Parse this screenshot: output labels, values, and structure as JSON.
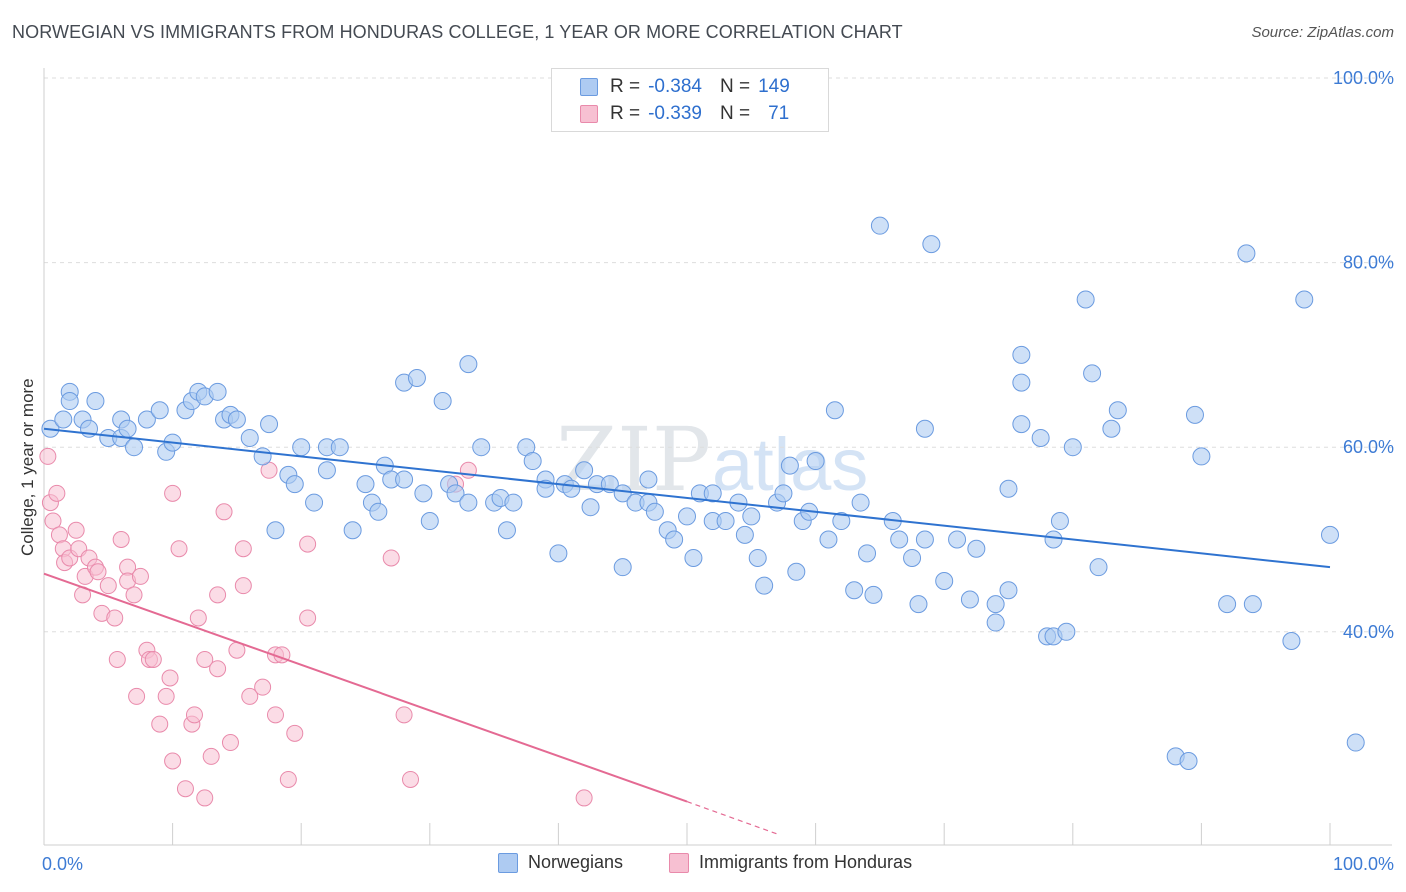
{
  "title": "NORWEGIAN VS IMMIGRANTS FROM HONDURAS COLLEGE, 1 YEAR OR MORE CORRELATION CHART",
  "source": "Source: ZipAtlas.com",
  "watermark": {
    "zip": "ZIP",
    "atlas": "atlas"
  },
  "legend": {
    "r_label": "R =",
    "n_label": "N =",
    "series": [
      {
        "r": "-0.384",
        "n": "149"
      },
      {
        "r": "-0.339",
        "n": "71"
      }
    ]
  },
  "chart_data": {
    "type": "scatter",
    "title": "NORWEGIAN VS IMMIGRANTS FROM HONDURAS COLLEGE, 1 YEAR OR MORE CORRELATION CHART",
    "xlabel": "",
    "ylabel": "College, 1 year or more",
    "xlim": [
      0,
      100
    ],
    "ylim": [
      16.9,
      100
    ],
    "x_tick_labels": [
      "0.0%",
      "100.0%"
    ],
    "y_ticks": [
      40,
      60,
      80,
      100
    ],
    "y_tick_labels": [
      "40.0%",
      "60.0%",
      "80.0%",
      "100.0%"
    ],
    "colors": {
      "norwegians_fill": "#aecbf2",
      "norwegians_stroke": "#6b9be0",
      "norwegians_line": "#2f73d0",
      "honduras_fill": "#f7c0d2",
      "honduras_stroke": "#e98aab",
      "honduras_line": "#e46a93",
      "axis_text": "#3d7bd4",
      "grid": "#dddddd"
    },
    "series": [
      {
        "name": "Norwegians",
        "trendline": {
          "x": [
            0,
            100
          ],
          "y": [
            62,
            47
          ]
        },
        "points": [
          [
            0.5,
            62
          ],
          [
            1.5,
            63
          ],
          [
            2,
            66
          ],
          [
            2,
            65
          ],
          [
            3,
            63
          ],
          [
            4,
            65
          ],
          [
            3.5,
            62
          ],
          [
            5,
            61
          ],
          [
            6,
            63
          ],
          [
            6,
            61
          ],
          [
            7,
            60
          ],
          [
            6.5,
            62
          ],
          [
            8,
            63
          ],
          [
            9,
            64
          ],
          [
            9.5,
            59.5
          ],
          [
            10,
            60.5
          ],
          [
            11,
            64
          ],
          [
            11.5,
            65
          ],
          [
            12,
            66
          ],
          [
            12.5,
            65.5
          ],
          [
            13.5,
            66
          ],
          [
            14,
            63
          ],
          [
            14.5,
            63.5
          ],
          [
            15,
            63
          ],
          [
            16,
            61
          ],
          [
            17,
            59
          ],
          [
            17.5,
            62.5
          ],
          [
            18,
            51
          ],
          [
            19,
            57
          ],
          [
            19.5,
            56
          ],
          [
            20,
            60
          ],
          [
            21,
            54
          ],
          [
            22,
            60
          ],
          [
            22,
            57.5
          ],
          [
            23,
            60
          ],
          [
            24,
            51
          ],
          [
            25,
            56
          ],
          [
            25.5,
            54
          ],
          [
            26,
            53
          ],
          [
            26.5,
            58
          ],
          [
            27,
            56.5
          ],
          [
            28,
            56.5
          ],
          [
            28,
            67
          ],
          [
            29,
            67.5
          ],
          [
            29.5,
            55
          ],
          [
            30,
            52
          ],
          [
            31,
            65
          ],
          [
            31.5,
            56
          ],
          [
            32,
            55
          ],
          [
            33,
            69
          ],
          [
            33,
            54
          ],
          [
            34,
            60
          ],
          [
            35,
            54
          ],
          [
            35.5,
            54.5
          ],
          [
            36,
            51
          ],
          [
            36.5,
            54
          ],
          [
            37.5,
            60
          ],
          [
            38,
            58.5
          ],
          [
            39,
            56.5
          ],
          [
            39,
            55.5
          ],
          [
            40,
            48.5
          ],
          [
            40.5,
            56
          ],
          [
            41,
            55.5
          ],
          [
            42,
            57.5
          ],
          [
            42.5,
            53.5
          ],
          [
            43,
            56
          ],
          [
            44,
            56
          ],
          [
            45,
            47
          ],
          [
            45,
            55
          ],
          [
            46,
            54
          ],
          [
            47,
            56.5
          ],
          [
            47,
            54
          ],
          [
            47.5,
            53
          ],
          [
            48.5,
            51
          ],
          [
            49,
            50
          ],
          [
            50,
            52.5
          ],
          [
            50.5,
            48
          ],
          [
            51,
            55
          ],
          [
            52,
            55
          ],
          [
            52,
            52
          ],
          [
            53,
            52
          ],
          [
            54,
            54
          ],
          [
            54.5,
            50.5
          ],
          [
            55,
            52.5
          ],
          [
            55.5,
            48
          ],
          [
            56,
            45
          ],
          [
            57,
            54
          ],
          [
            57.5,
            55
          ],
          [
            58,
            58
          ],
          [
            58.5,
            46.5
          ],
          [
            59,
            52
          ],
          [
            59.5,
            53
          ],
          [
            60,
            58.5
          ],
          [
            61,
            50
          ],
          [
            61.5,
            64
          ],
          [
            62,
            52
          ],
          [
            63,
            44.5
          ],
          [
            63.5,
            54
          ],
          [
            64,
            48.5
          ],
          [
            64.5,
            44
          ],
          [
            65,
            84
          ],
          [
            66,
            52
          ],
          [
            66.5,
            50
          ],
          [
            67.5,
            48
          ],
          [
            68,
            43
          ],
          [
            68.5,
            62
          ],
          [
            68.5,
            50
          ],
          [
            69,
            82
          ],
          [
            70,
            45.5
          ],
          [
            71,
            50
          ],
          [
            72,
            43.5
          ],
          [
            72.5,
            49
          ],
          [
            74,
            43
          ],
          [
            74,
            41
          ],
          [
            75,
            44.5
          ],
          [
            75,
            55.5
          ],
          [
            76,
            62.5
          ],
          [
            76,
            67
          ],
          [
            76,
            70
          ],
          [
            77.5,
            61
          ],
          [
            78,
            39.5
          ],
          [
            78.5,
            39.5
          ],
          [
            78.5,
            50
          ],
          [
            79,
            52
          ],
          [
            79.5,
            40
          ],
          [
            80,
            60
          ],
          [
            81,
            76
          ],
          [
            81.5,
            68
          ],
          [
            82,
            47
          ],
          [
            83,
            62
          ],
          [
            83.5,
            64
          ],
          [
            88,
            26.5
          ],
          [
            89,
            26
          ],
          [
            89.5,
            63.5
          ],
          [
            90,
            59
          ],
          [
            92,
            43
          ],
          [
            94,
            43
          ],
          [
            93.5,
            81
          ],
          [
            97,
            39
          ],
          [
            98,
            76
          ],
          [
            100,
            50.5
          ],
          [
            102,
            28
          ]
        ]
      },
      {
        "name": "Immigrants from Honduras",
        "trendline": {
          "x": [
            0,
            50
          ],
          "y": [
            46.3,
            21.6
          ],
          "dashed_to": {
            "x": 57,
            "y": 18.1
          }
        },
        "points": [
          [
            0.3,
            59
          ],
          [
            0.5,
            54
          ],
          [
            0.7,
            52
          ],
          [
            1,
            55
          ],
          [
            1.2,
            50.5
          ],
          [
            1.5,
            49
          ],
          [
            1.6,
            47.5
          ],
          [
            2,
            48
          ],
          [
            2.5,
            51
          ],
          [
            2.7,
            49
          ],
          [
            3,
            44
          ],
          [
            3.2,
            46
          ],
          [
            3.5,
            48
          ],
          [
            4,
            47
          ],
          [
            4.2,
            46.5
          ],
          [
            4.5,
            42
          ],
          [
            5,
            45
          ],
          [
            5.5,
            41.5
          ],
          [
            5.7,
            37
          ],
          [
            6,
            50
          ],
          [
            6.5,
            47
          ],
          [
            6.5,
            45.5
          ],
          [
            7,
            44
          ],
          [
            7.2,
            33
          ],
          [
            7.5,
            46
          ],
          [
            8,
            38
          ],
          [
            8.2,
            37
          ],
          [
            8.5,
            37
          ],
          [
            9,
            30
          ],
          [
            9.5,
            33
          ],
          [
            9.8,
            35
          ],
          [
            10,
            26
          ],
          [
            10,
            55
          ],
          [
            10.5,
            49
          ],
          [
            11,
            23
          ],
          [
            11.5,
            30
          ],
          [
            11.7,
            31
          ],
          [
            12,
            41.5
          ],
          [
            12.5,
            22
          ],
          [
            12.5,
            37
          ],
          [
            13,
            26.5
          ],
          [
            13.5,
            36
          ],
          [
            13.5,
            44
          ],
          [
            14,
            53
          ],
          [
            14.5,
            28
          ],
          [
            15,
            38
          ],
          [
            15.5,
            45
          ],
          [
            15.5,
            49
          ],
          [
            16,
            33
          ],
          [
            17,
            34
          ],
          [
            17.5,
            57.5
          ],
          [
            18,
            31
          ],
          [
            18,
            37.5
          ],
          [
            18.5,
            37.5
          ],
          [
            19,
            24
          ],
          [
            19.5,
            29
          ],
          [
            20.5,
            49.5
          ],
          [
            20.5,
            41.5
          ],
          [
            27,
            48
          ],
          [
            28,
            31
          ],
          [
            28.5,
            24
          ],
          [
            32,
            56
          ],
          [
            33,
            57.5
          ],
          [
            42,
            22
          ]
        ]
      }
    ]
  },
  "legend_bottom": [
    "Norwegians",
    "Immigrants from Honduras"
  ]
}
